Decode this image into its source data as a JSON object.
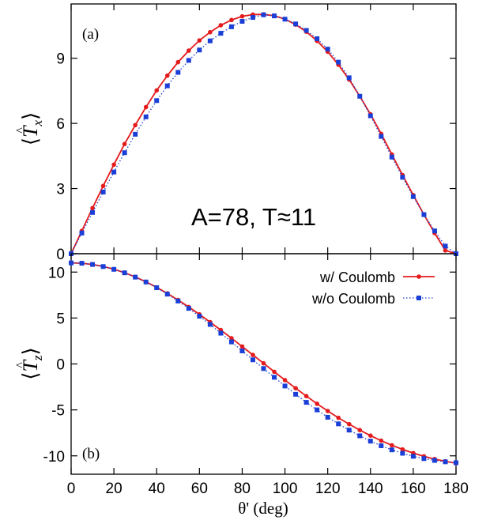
{
  "chart_data": [
    {
      "type": "line",
      "panel_label": "(a)",
      "ylabel": "⟨T̂x⟩",
      "ylabel_base": "T",
      "ylabel_sub": "x",
      "xlim": [
        0,
        180
      ],
      "ylim": [
        0,
        11.5
      ],
      "yticks": [
        "0",
        "3",
        "6",
        "9"
      ],
      "ytick_values": [
        0,
        3,
        6,
        9
      ],
      "annotation": "A=78, T≈11",
      "series": [
        {
          "name": "w/ Coulomb",
          "color": "#e41a1c",
          "style": "solid",
          "marker": "circle",
          "x": [
            0,
            5,
            10,
            15,
            20,
            25,
            30,
            35,
            40,
            45,
            50,
            55,
            60,
            65,
            70,
            75,
            80,
            85,
            90,
            95,
            100,
            105,
            110,
            115,
            120,
            125,
            130,
            135,
            140,
            145,
            150,
            155,
            160,
            165,
            170,
            175,
            180
          ],
          "y": [
            0,
            1.05,
            2.1,
            3.12,
            4.1,
            5.05,
            5.92,
            6.75,
            7.52,
            8.2,
            8.82,
            9.35,
            9.82,
            10.2,
            10.52,
            10.76,
            10.93,
            11.01,
            11.02,
            10.96,
            10.8,
            10.55,
            10.22,
            9.8,
            9.3,
            8.7,
            8.02,
            7.25,
            6.42,
            5.52,
            4.57,
            3.62,
            2.7,
            1.8,
            0.95,
            0.15,
            0
          ]
        },
        {
          "name": "w/o Coulomb",
          "color": "#1a3fd6",
          "style": "dotted",
          "marker": "square",
          "x": [
            0,
            5,
            10,
            15,
            20,
            25,
            30,
            35,
            40,
            45,
            50,
            55,
            60,
            65,
            70,
            75,
            80,
            85,
            90,
            95,
            100,
            105,
            110,
            115,
            120,
            125,
            130,
            135,
            140,
            145,
            150,
            155,
            160,
            165,
            170,
            175,
            180
          ],
          "y": [
            0,
            0.95,
            1.9,
            2.84,
            3.76,
            4.65,
            5.5,
            6.3,
            7.05,
            7.73,
            8.35,
            8.9,
            9.38,
            9.8,
            10.15,
            10.45,
            10.7,
            10.88,
            11.0,
            10.95,
            10.8,
            10.58,
            10.28,
            9.9,
            9.42,
            8.82,
            8.1,
            7.25,
            6.35,
            5.4,
            4.45,
            3.52,
            2.63,
            1.8,
            1.05,
            0.35,
            0
          ]
        }
      ]
    },
    {
      "type": "line",
      "panel_label": "(b)",
      "ylabel": "⟨T̂z⟩",
      "ylabel_base": "T",
      "ylabel_sub": "z",
      "xlabel": "θ' (deg)",
      "xlim": [
        0,
        180
      ],
      "ylim": [
        -12,
        12
      ],
      "yticks": [
        "10",
        "5",
        "0",
        "-5",
        "-10"
      ],
      "ytick_values": [
        10,
        5,
        0,
        -5,
        -10
      ],
      "xticks": [
        "0",
        "20",
        "40",
        "60",
        "80",
        "100",
        "120",
        "140",
        "160",
        "180"
      ],
      "xtick_values": [
        0,
        20,
        40,
        60,
        80,
        100,
        120,
        140,
        160,
        180
      ],
      "legend_position": "top-right",
      "series": [
        {
          "name": "w/ Coulomb",
          "color": "#e41a1c",
          "style": "solid",
          "marker": "circle",
          "x": [
            0,
            5,
            10,
            15,
            20,
            25,
            30,
            35,
            40,
            45,
            50,
            55,
            60,
            65,
            70,
            75,
            80,
            85,
            90,
            95,
            100,
            105,
            110,
            115,
            120,
            125,
            130,
            135,
            140,
            145,
            150,
            155,
            160,
            165,
            170,
            175,
            180
          ],
          "y": [
            11,
            10.96,
            10.83,
            10.61,
            10.31,
            9.93,
            9.47,
            8.94,
            8.34,
            7.68,
            6.96,
            6.2,
            5.4,
            4.55,
            3.69,
            2.8,
            1.9,
            0.98,
            0.07,
            -0.85,
            -1.76,
            -2.64,
            -3.5,
            -4.33,
            -5.12,
            -5.86,
            -6.55,
            -7.2,
            -7.8,
            -8.35,
            -8.85,
            -9.3,
            -9.7,
            -10.05,
            -10.35,
            -10.6,
            -10.8
          ]
        },
        {
          "name": "w/o Coulomb",
          "color": "#1a3fd6",
          "style": "dotted",
          "marker": "square",
          "x": [
            0,
            5,
            10,
            15,
            20,
            25,
            30,
            35,
            40,
            45,
            50,
            55,
            60,
            65,
            70,
            75,
            80,
            85,
            90,
            95,
            100,
            105,
            110,
            115,
            120,
            125,
            130,
            135,
            140,
            145,
            150,
            155,
            160,
            165,
            170,
            175,
            180
          ],
          "y": [
            11,
            10.96,
            10.83,
            10.6,
            10.3,
            9.92,
            9.45,
            8.92,
            8.3,
            7.6,
            6.85,
            6.05,
            5.2,
            4.3,
            3.35,
            2.4,
            1.42,
            0.45,
            -0.5,
            -1.45,
            -2.4,
            -3.3,
            -4.18,
            -5.0,
            -5.8,
            -6.52,
            -7.2,
            -7.82,
            -8.4,
            -8.9,
            -9.35,
            -9.72,
            -10.05,
            -10.3,
            -10.5,
            -10.65,
            -10.75
          ]
        }
      ]
    }
  ]
}
